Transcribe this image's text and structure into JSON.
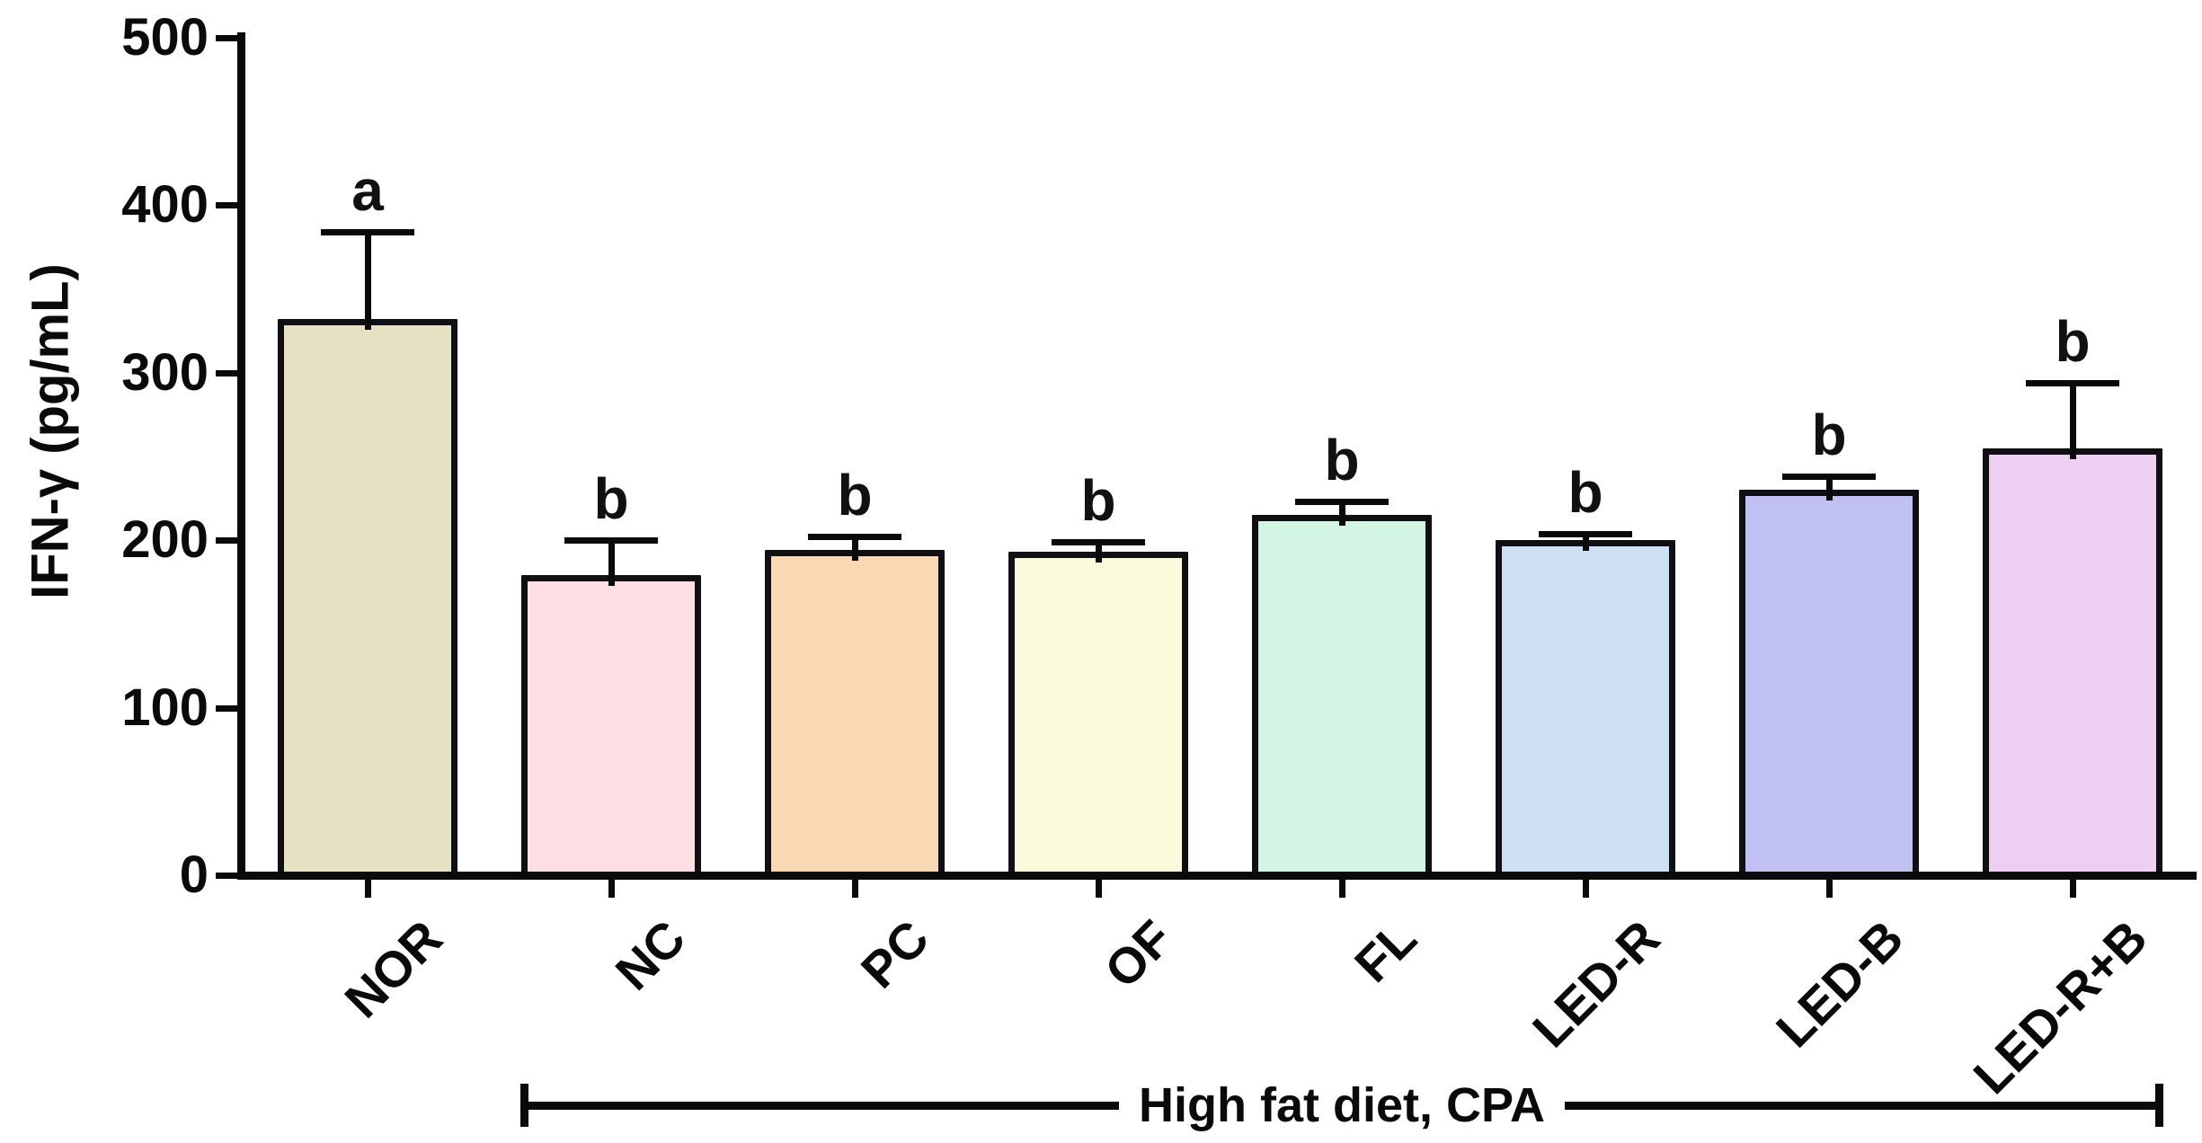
{
  "chart_data": {
    "type": "bar",
    "title": "",
    "ylabel": "IFN-γ (pg/mL)",
    "xlabel": "",
    "ylim": [
      0,
      500
    ],
    "yticks": [
      0,
      100,
      200,
      300,
      400,
      500
    ],
    "categories": [
      "NOR",
      "NC",
      "PC",
      "OF",
      "FL",
      "LED-R",
      "LED-B",
      "LED-R+B"
    ],
    "values": [
      332,
      179,
      194,
      193,
      215,
      200,
      230,
      255
    ],
    "errors": [
      52,
      21,
      8,
      6,
      8,
      4,
      8,
      39
    ],
    "sig_letters": [
      "a",
      "b",
      "b",
      "b",
      "b",
      "b",
      "b",
      "b"
    ],
    "bar_colors": [
      "#E5E1C2",
      "#FCDEE3",
      "#FAD8B3",
      "#FCFADC",
      "#D2F6E3",
      "#CDE0F4",
      "#C0C0F2",
      "#EECFF2"
    ],
    "bar_border_color": "#101014",
    "error_bar_color": "#0a0a0a",
    "axis_color": "#0a0a0a",
    "grid": false,
    "legend": "none",
    "annotation_bracket": {
      "label": "High fat diet, CPA",
      "from_category": "NC",
      "to_category": "LED-R+B"
    }
  }
}
